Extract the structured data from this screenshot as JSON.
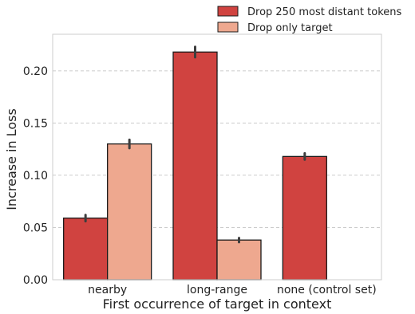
{
  "chart_data": {
    "type": "bar",
    "title": "",
    "xlabel": "First occurrence of target in context",
    "ylabel": "Increase in Loss",
    "categories": [
      "nearby",
      "long-range",
      "none (control set)"
    ],
    "series": [
      {
        "name": "Drop 250 most distant tokens",
        "color": "#d04340",
        "values": [
          0.059,
          0.218,
          0.118
        ],
        "error": [
          0.003,
          0.005,
          0.003
        ]
      },
      {
        "name": "Drop only target",
        "color": "#eea88f",
        "values": [
          0.13,
          0.038,
          null
        ],
        "error": [
          0.004,
          0.002,
          null
        ]
      }
    ],
    "ylim": [
      0,
      0.235
    ],
    "yticks": [
      "0.00",
      "0.05",
      "0.10",
      "0.15",
      "0.20"
    ],
    "ytick_values": [
      0.0,
      0.05,
      0.1,
      0.15,
      0.2
    ],
    "grid": true,
    "legend_position": "top-right, above plot"
  }
}
